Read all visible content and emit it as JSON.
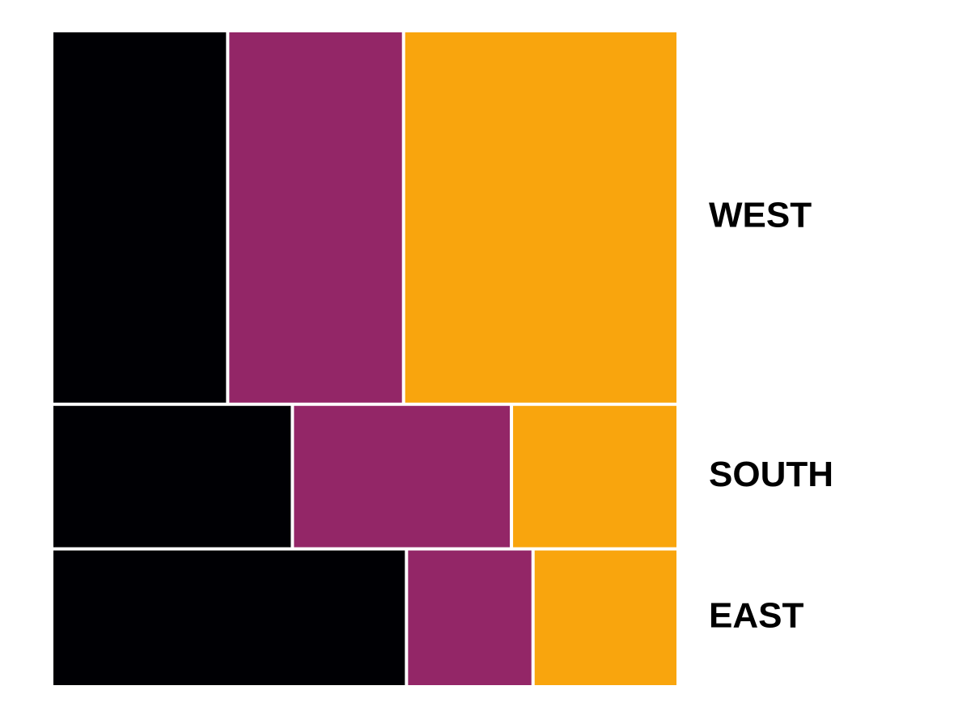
{
  "chart_data": {
    "type": "mosaic",
    "title": "",
    "xlabel": "",
    "ylabel": "",
    "grid": false,
    "legend": "none",
    "rows": [
      {
        "label": "WEST",
        "share": 0.55,
        "segments": [
          0.28,
          0.28,
          0.44
        ]
      },
      {
        "label": "SOUTH",
        "share": 0.21,
        "segments": [
          0.385,
          0.35,
          0.265
        ]
      },
      {
        "label": "EAST",
        "share": 0.2,
        "segments": [
          0.57,
          0.2,
          0.23
        ]
      }
    ],
    "segment_colors": [
      "#000004",
      "#932667",
      "#F9A50D"
    ]
  }
}
